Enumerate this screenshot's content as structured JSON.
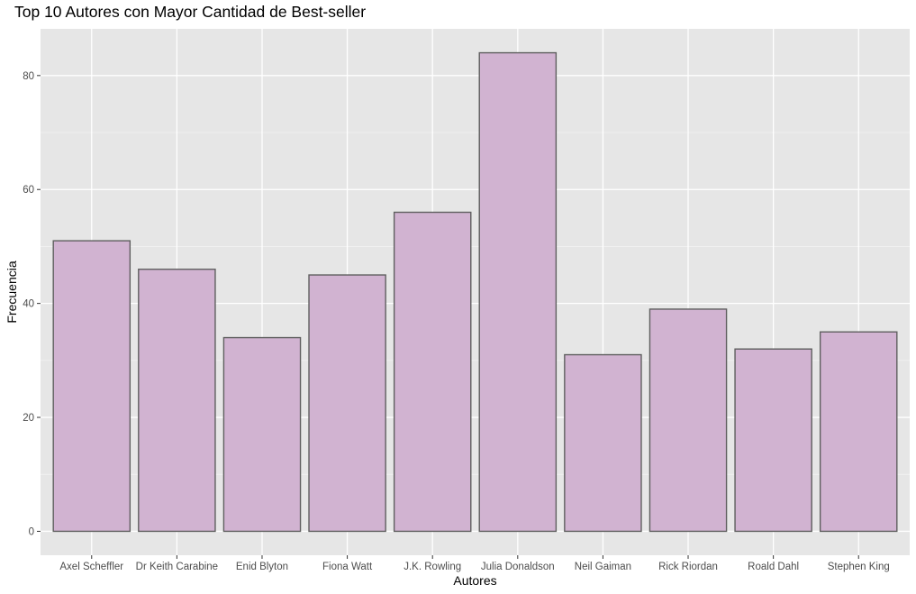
{
  "chart_data": {
    "type": "bar",
    "title": "Top 10 Autores con Mayor Cantidad de Best-seller",
    "xlabel": "Autores",
    "ylabel": "Frecuencia",
    "categories": [
      "Axel Scheffler",
      "Dr Keith Carabine",
      "Enid Blyton",
      "Fiona Watt",
      "J.K. Rowling",
      "Julia Donaldson",
      "Neil Gaiman",
      "Rick Riordan",
      "Roald Dahl",
      "Stephen King"
    ],
    "values": [
      51,
      46,
      34,
      45,
      56,
      84,
      31,
      39,
      32,
      35
    ],
    "yticks": [
      0,
      20,
      40,
      60,
      80
    ],
    "ylim": [
      -4.2,
      88.2
    ],
    "grid": true,
    "legend": "none",
    "colors": {
      "bar_fill": "#d1b3d1",
      "bar_stroke": "#5f5f5f",
      "panel_bg": "#e6e6e6",
      "grid_major": "#ffffff"
    }
  }
}
